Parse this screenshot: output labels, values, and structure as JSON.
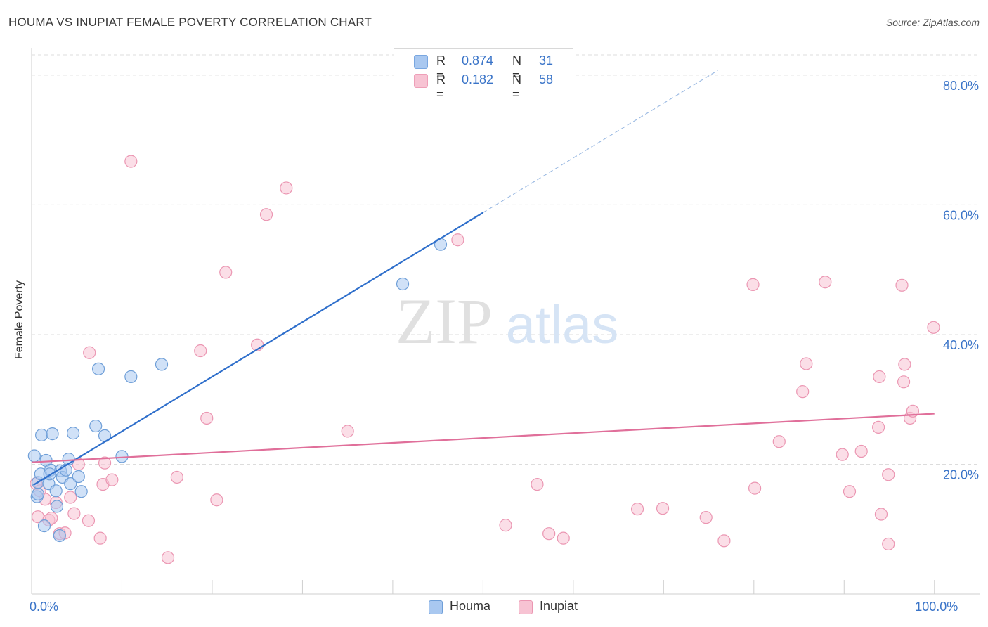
{
  "title": "HOUMA VS INUPIAT FEMALE POVERTY CORRELATION CHART",
  "source": "Source: ZipAtlas.com",
  "watermark": {
    "zip": "ZIP",
    "atlas": "atlas"
  },
  "stats": [
    {
      "r_label": "R =",
      "r_value": "0.874",
      "n_label": "N =",
      "n_value": "31",
      "color": "#a9c8f0",
      "border": "#7aa7e0"
    },
    {
      "r_label": "R =",
      "r_value": "0.182",
      "n_label": "N =",
      "n_value": "58",
      "color": "#f7c3d3",
      "border": "#ee9fb8"
    }
  ],
  "chart_data": {
    "type": "scatter",
    "xlabel": "",
    "ylabel": "Female Poverty",
    "xlim": [
      0,
      105
    ],
    "ylim": [
      0,
      84
    ],
    "x_tick_labels": [
      {
        "value": 0,
        "label": "0.0%"
      },
      {
        "value": 100,
        "label": "100.0%"
      }
    ],
    "x_minor_ticks": [
      10,
      20,
      30,
      40,
      50,
      60,
      70,
      80,
      90,
      100
    ],
    "y_ticks": [
      {
        "value": 20,
        "label": "20.0%"
      },
      {
        "value": 40,
        "label": "40.0%"
      },
      {
        "value": 60,
        "label": "60.0%"
      },
      {
        "value": 80,
        "label": "80.0%"
      }
    ],
    "series": [
      {
        "name": "Houma",
        "fill": "#a9c8f0",
        "stroke": "#6f9fd8",
        "line_color": "#2f6fcb",
        "trend": {
          "x0": 0.2,
          "y0": 16.8,
          "x1": 50.0,
          "y1": 58.8,
          "dash_to_x": 76.0
        },
        "points": [
          [
            0.3,
            21.3
          ],
          [
            0.6,
            15.0
          ],
          [
            0.7,
            17.2
          ],
          [
            1.0,
            18.5
          ],
          [
            1.1,
            24.5
          ],
          [
            1.4,
            10.5
          ],
          [
            1.6,
            20.6
          ],
          [
            1.9,
            17.0
          ],
          [
            2.1,
            19.1
          ],
          [
            2.3,
            24.7
          ],
          [
            2.7,
            15.9
          ],
          [
            2.8,
            13.5
          ],
          [
            3.1,
            9.0
          ],
          [
            3.2,
            19.0
          ],
          [
            3.4,
            18.0
          ],
          [
            3.8,
            19.1
          ],
          [
            4.1,
            20.8
          ],
          [
            4.3,
            17.0
          ],
          [
            4.6,
            24.8
          ],
          [
            5.2,
            18.1
          ],
          [
            5.5,
            15.8
          ],
          [
            7.1,
            25.9
          ],
          [
            7.4,
            34.7
          ],
          [
            8.1,
            24.4
          ],
          [
            10.0,
            21.2
          ],
          [
            11.0,
            33.5
          ],
          [
            14.4,
            35.4
          ],
          [
            41.1,
            47.8
          ],
          [
            45.3,
            53.9
          ],
          [
            0.7,
            15.4
          ],
          [
            2.0,
            18.5
          ]
        ]
      },
      {
        "name": "Inupiat",
        "fill": "#f7c3d3",
        "stroke": "#eb96b2",
        "line_color": "#e06f9a",
        "trend": {
          "x0": 0.0,
          "y0": 20.3,
          "x1": 100.0,
          "y1": 27.8
        },
        "points": [
          [
            0.5,
            17.0
          ],
          [
            0.7,
            11.9
          ],
          [
            0.9,
            15.9
          ],
          [
            1.5,
            14.6
          ],
          [
            1.9,
            11.4
          ],
          [
            2.2,
            11.7
          ],
          [
            2.7,
            14.1
          ],
          [
            3.1,
            9.3
          ],
          [
            3.7,
            9.4
          ],
          [
            4.3,
            14.9
          ],
          [
            4.7,
            12.4
          ],
          [
            5.2,
            20.0
          ],
          [
            6.3,
            11.3
          ],
          [
            6.4,
            37.2
          ],
          [
            7.6,
            8.6
          ],
          [
            7.9,
            16.9
          ],
          [
            8.1,
            20.2
          ],
          [
            8.9,
            17.6
          ],
          [
            11.0,
            66.7
          ],
          [
            15.1,
            5.6
          ],
          [
            16.1,
            18.0
          ],
          [
            18.7,
            37.5
          ],
          [
            19.4,
            27.1
          ],
          [
            20.5,
            14.5
          ],
          [
            21.5,
            49.6
          ],
          [
            25.0,
            38.4
          ],
          [
            26.0,
            58.5
          ],
          [
            28.2,
            62.6
          ],
          [
            35.0,
            25.1
          ],
          [
            47.2,
            54.6
          ],
          [
            52.5,
            10.6
          ],
          [
            56.0,
            16.9
          ],
          [
            57.3,
            9.3
          ],
          [
            58.9,
            8.6
          ],
          [
            67.1,
            13.1
          ],
          [
            69.9,
            13.2
          ],
          [
            74.7,
            11.8
          ],
          [
            76.7,
            8.2
          ],
          [
            79.9,
            47.7
          ],
          [
            80.1,
            16.3
          ],
          [
            82.8,
            23.5
          ],
          [
            85.4,
            31.2
          ],
          [
            85.8,
            35.5
          ],
          [
            87.9,
            48.1
          ],
          [
            89.8,
            21.5
          ],
          [
            90.6,
            15.8
          ],
          [
            91.9,
            22.0
          ],
          [
            93.8,
            25.7
          ],
          [
            93.9,
            33.5
          ],
          [
            94.1,
            12.3
          ],
          [
            94.9,
            18.4
          ],
          [
            94.9,
            7.7
          ],
          [
            96.4,
            47.6
          ],
          [
            96.6,
            32.7
          ],
          [
            96.7,
            35.4
          ],
          [
            97.3,
            27.1
          ],
          [
            97.6,
            28.2
          ],
          [
            99.9,
            41.1
          ]
        ]
      }
    ]
  }
}
